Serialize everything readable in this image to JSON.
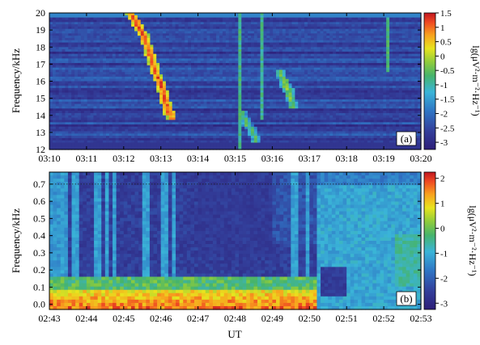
{
  "figure": {
    "xlabel": "UT"
  },
  "colors": {
    "frame": "#000000",
    "grid": "#1a1a1a"
  },
  "chart_data": [
    {
      "type": "heatmap",
      "panel_label": "(a)",
      "ylabel": "Frequency/kHz",
      "x_ticks": [
        "03:10",
        "03:11",
        "03:12",
        "03:13",
        "03:14",
        "03:15",
        "03:16",
        "03:17",
        "03:18",
        "03:19",
        "03:20"
      ],
      "x_range_minutes": [
        0,
        10
      ],
      "y_range": [
        12,
        20
      ],
      "y_ticks": [
        12,
        13,
        14,
        15,
        16,
        17,
        18,
        19,
        20
      ],
      "colorbar": {
        "label": "lg(μV²·m⁻²·Hz⁻¹)",
        "range": [
          -3.25,
          1.5
        ],
        "ticks": [
          "1.5",
          "1",
          "0.5",
          "0",
          "-0.5",
          "-1",
          "-1.5",
          "-2",
          "-2.5",
          "-3"
        ]
      },
      "features": [
        {
          "name": "broadband burst",
          "x_min": 5.15,
          "y_range": [
            12,
            20
          ],
          "level": -0.8
        },
        {
          "name": "broadband burst",
          "x_min": 5.75,
          "y_range": [
            13.8,
            20
          ],
          "level": -0.9
        },
        {
          "name": "broadband burst",
          "x_min": 9.12,
          "y_range": [
            16.6,
            19.7
          ],
          "level": -0.7
        },
        {
          "name": "falling-tone chorus",
          "points_min_khz": [
            [
              2.2,
              19.9
            ],
            [
              2.35,
              19.4
            ],
            [
              2.55,
              18.6
            ],
            [
              2.7,
              17.7
            ],
            [
              2.85,
              16.6
            ],
            [
              3.0,
              15.8
            ],
            [
              3.1,
              15.0
            ],
            [
              3.2,
              14.3
            ],
            [
              3.3,
              14.0
            ]
          ],
          "level": 1.2
        },
        {
          "name": "falling-tone element",
          "points_min_khz": [
            [
              5.2,
              14.0
            ],
            [
              5.3,
              13.6
            ],
            [
              5.45,
              13.1
            ],
            [
              5.55,
              12.7
            ]
          ],
          "level": -0.6
        },
        {
          "name": "falling-tone element",
          "points_min_khz": [
            [
              6.2,
              16.4
            ],
            [
              6.35,
              15.9
            ],
            [
              6.45,
              15.3
            ],
            [
              6.55,
              14.6
            ]
          ],
          "level": -0.2
        }
      ]
    },
    {
      "type": "heatmap",
      "panel_label": "(b)",
      "ylabel": "Frequency/kHz",
      "x_ticks": [
        "02:43",
        "02:44",
        "02:45",
        "02:46",
        "02:47",
        "02:48",
        "02:49",
        "02:50",
        "02:51",
        "02:52",
        "02:53"
      ],
      "x_range_minutes": [
        0,
        10
      ],
      "y_range": [
        -0.03,
        0.77
      ],
      "y_ticks": [
        0.0,
        0.1,
        0.2,
        0.3,
        0.4,
        0.5,
        0.6,
        0.7
      ],
      "colorbar": {
        "label": "lg(μV²·m⁻²·Hz⁻¹)",
        "range": [
          -3.25,
          2.25
        ],
        "ticks": [
          "2",
          "1",
          "0",
          "-1",
          "-2",
          "-3"
        ]
      },
      "features": [
        {
          "name": "low-frequency hiss band",
          "x_range_minutes": [
            0,
            7.2
          ],
          "y_range": [
            0,
            0.08
          ],
          "level": 1.2
        },
        {
          "name": "diffuse emission",
          "x_range_minutes": [
            7.2,
            10
          ],
          "y_range": [
            0,
            0.7
          ],
          "level": -1.0
        }
      ]
    }
  ]
}
